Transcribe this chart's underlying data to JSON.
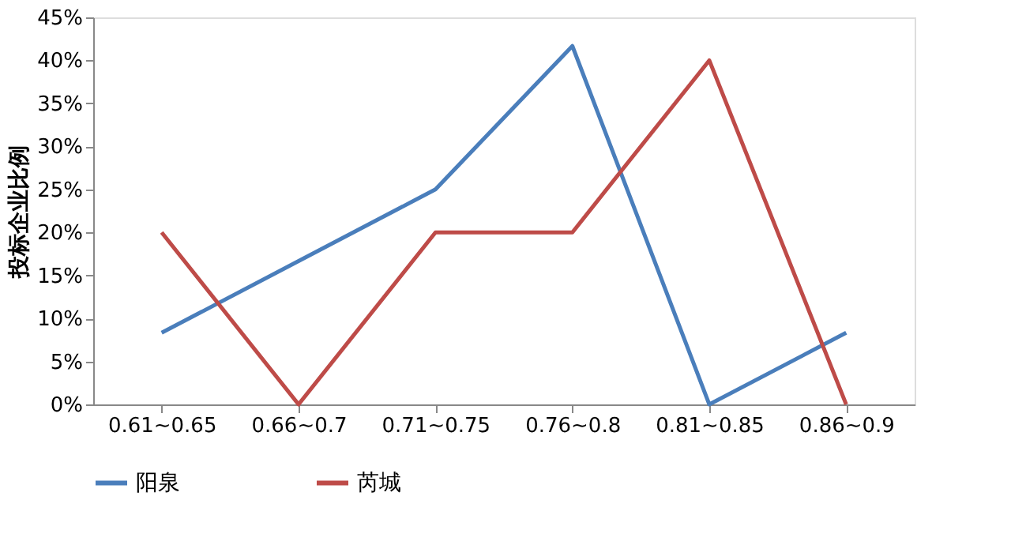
{
  "chart_data": {
    "type": "line",
    "ylabel": "投标企业比例",
    "categories": [
      "0.61~0.65",
      "0.66~0.7",
      "0.71~0.75",
      "0.76~0.8",
      "0.81~0.85",
      "0.86~0.9"
    ],
    "series": [
      {
        "name": "阳泉",
        "color": "#4a7ebb",
        "values": [
          8.33,
          16.67,
          25,
          41.67,
          0,
          8.33
        ]
      },
      {
        "name": "芮城",
        "color": "#be4b48",
        "values": [
          20,
          0,
          20,
          20,
          40,
          0
        ]
      }
    ],
    "ylim": [
      0,
      45
    ],
    "yticks": [
      {
        "value": 0,
        "label": "0%"
      },
      {
        "value": 5,
        "label": "5%"
      },
      {
        "value": 10,
        "label": "10%"
      },
      {
        "value": 15,
        "label": "15%"
      },
      {
        "value": 20,
        "label": "20%"
      },
      {
        "value": 25,
        "label": "25%"
      },
      {
        "value": 30,
        "label": "30%"
      },
      {
        "value": 35,
        "label": "35%"
      },
      {
        "value": 40,
        "label": "40%"
      },
      {
        "value": 45,
        "label": "45%"
      }
    ],
    "legend": "bottom",
    "grid": false,
    "line_style": "solid"
  }
}
